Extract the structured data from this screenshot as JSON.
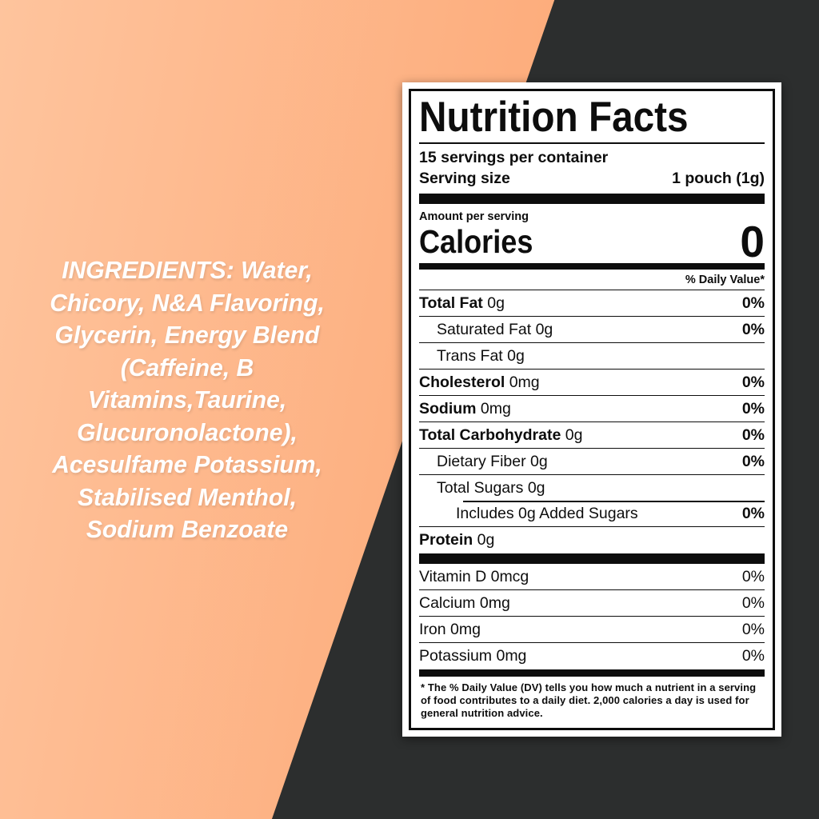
{
  "background": {
    "orange_gradient_start": "#fec49d",
    "orange_gradient_end": "#fb9a60",
    "dark_color": "#2c2e2e"
  },
  "ingredients": {
    "text": "INGREDIENTS: Water,\nChicory, N&A Flavoring,\nGlycerin, Energy Blend\n(Caffeine, B\nVitamins,Taurine,\nGlucuronolactone),\nAcesulfame Potassium,\nStabilised Menthol,\nSodium Benzoate"
  },
  "label": {
    "title": "Nutrition Facts",
    "servings_per_container": "15 servings per container",
    "serving_size_label": "Serving size",
    "serving_size_value": "1 pouch (1g)",
    "amount_per_serving": "Amount per serving",
    "calories_label": "Calories",
    "calories_value": "0",
    "daily_value_header": "% Daily Value*",
    "nutrients": [
      {
        "label": "Total Fat",
        "amount": "0g",
        "dv": "0%"
      },
      {
        "label": "Saturated Fat",
        "amount": "0g",
        "dv": "0%"
      },
      {
        "label": "Trans Fat",
        "amount": "0g",
        "dv": ""
      },
      {
        "label": "Cholesterol",
        "amount": "0mg",
        "dv": "0%"
      },
      {
        "label": "Sodium",
        "amount": "0mg",
        "dv": "0%"
      },
      {
        "label": "Total Carbohydrate",
        "amount": "0g",
        "dv": "0%"
      },
      {
        "label": "Dietary Fiber",
        "amount": "0g",
        "dv": "0%"
      },
      {
        "label": "Total Sugars",
        "amount": "0g",
        "dv": ""
      },
      {
        "label": "Includes 0g Added Sugars",
        "amount": "",
        "dv": "0%"
      },
      {
        "label": "Protein",
        "amount": "0g",
        "dv": ""
      }
    ],
    "micronutrients": [
      {
        "label": "Vitamin D",
        "amount": "0mcg",
        "dv": "0%"
      },
      {
        "label": "Calcium",
        "amount": "0mg",
        "dv": "0%"
      },
      {
        "label": "Iron",
        "amount": "0mg",
        "dv": "0%"
      },
      {
        "label": "Potassium",
        "amount": "0mg",
        "dv": "0%"
      }
    ],
    "footnote": "* The % Daily Value (DV) tells you how much a nutrient in a serving of food contributes to a daily diet. 2,000 calories a day is used for general nutrition advice."
  }
}
